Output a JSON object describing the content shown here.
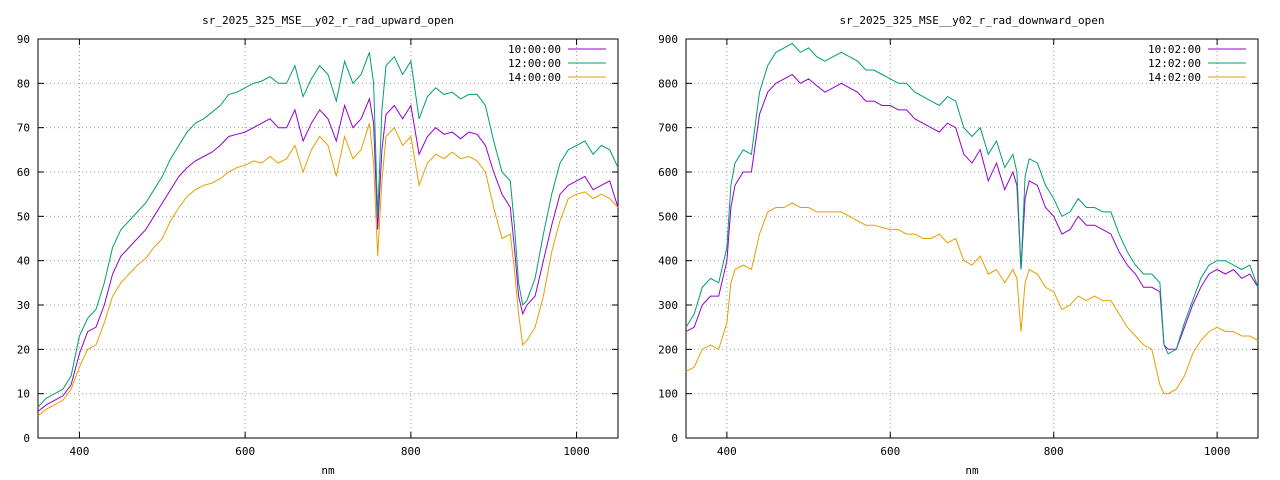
{
  "chart_data": [
    {
      "type": "line",
      "title": "sr_2025_325_MSE__y02_r_rad_upward_open",
      "xlabel": "nm",
      "ylabel": "",
      "xlim": [
        350,
        1050
      ],
      "ylim": [
        0,
        90
      ],
      "xticks": [
        400,
        600,
        800,
        1000
      ],
      "yticks": [
        0,
        10,
        20,
        30,
        40,
        50,
        60,
        70,
        80,
        90
      ],
      "grid": true,
      "legend_position": "top-right",
      "series": [
        {
          "name": "10:00:00",
          "color": "#9400d3",
          "x": [
            350,
            360,
            370,
            380,
            390,
            400,
            410,
            420,
            430,
            440,
            450,
            460,
            470,
            480,
            490,
            500,
            510,
            520,
            530,
            540,
            550,
            560,
            570,
            580,
            590,
            600,
            610,
            620,
            630,
            640,
            650,
            660,
            670,
            680,
            690,
            700,
            710,
            720,
            730,
            740,
            750,
            755,
            760,
            765,
            770,
            780,
            790,
            800,
            810,
            820,
            830,
            840,
            850,
            860,
            870,
            880,
            890,
            900,
            910,
            920,
            925,
            930,
            935,
            940,
            950,
            960,
            970,
            980,
            990,
            1000,
            1010,
            1020,
            1030,
            1040,
            1050
          ],
          "y": [
            6,
            7.5,
            8.5,
            9.5,
            12,
            19,
            24,
            25,
            30,
            37,
            41,
            43,
            45,
            47,
            50,
            53,
            56,
            59,
            61,
            62.5,
            63.5,
            64.5,
            66,
            68,
            68.5,
            69,
            70,
            71,
            72,
            70,
            70,
            74,
            67,
            71,
            74,
            72,
            67,
            75,
            70,
            72,
            76.5,
            71,
            47,
            65,
            73,
            75,
            72,
            75,
            64,
            68,
            70,
            68.5,
            69,
            67.5,
            69,
            68.5,
            66,
            60,
            55,
            52,
            43,
            32,
            28,
            30,
            32,
            40,
            48,
            55,
            57,
            58,
            59,
            56,
            57,
            58,
            52
          ]
        },
        {
          "name": "12:00:00",
          "color": "#009e73",
          "x": [
            350,
            360,
            370,
            380,
            390,
            400,
            410,
            420,
            430,
            440,
            450,
            460,
            470,
            480,
            490,
            500,
            510,
            520,
            530,
            540,
            550,
            560,
            570,
            580,
            590,
            600,
            610,
            620,
            630,
            640,
            650,
            660,
            670,
            680,
            690,
            700,
            710,
            720,
            730,
            740,
            750,
            755,
            760,
            765,
            770,
            780,
            790,
            800,
            810,
            820,
            830,
            840,
            850,
            860,
            870,
            880,
            890,
            900,
            910,
            920,
            925,
            930,
            935,
            940,
            950,
            960,
            970,
            980,
            990,
            1000,
            1010,
            1020,
            1030,
            1040,
            1050
          ],
          "y": [
            7,
            9,
            10,
            11,
            14,
            23,
            27,
            29,
            35,
            43,
            47,
            49,
            51,
            53,
            56,
            59,
            63,
            66,
            69,
            71,
            72,
            73.5,
            75,
            77.5,
            78,
            79,
            80,
            80.5,
            81.5,
            80,
            80,
            84,
            77,
            81,
            84,
            82,
            76,
            85,
            80,
            82,
            87,
            80,
            50,
            74,
            84,
            86,
            82,
            85,
            72,
            77,
            79,
            77.5,
            78,
            76.5,
            77.5,
            77.5,
            75,
            67,
            60,
            58,
            48,
            35,
            30,
            31,
            36,
            46,
            55,
            62,
            65,
            66,
            67,
            64,
            66,
            65,
            61
          ]
        },
        {
          "name": "14:00:00",
          "color": "#e69f00",
          "x": [
            350,
            360,
            370,
            380,
            390,
            400,
            410,
            420,
            430,
            440,
            450,
            460,
            470,
            480,
            490,
            500,
            510,
            520,
            530,
            540,
            550,
            560,
            570,
            580,
            590,
            600,
            610,
            620,
            630,
            640,
            650,
            660,
            670,
            680,
            690,
            700,
            710,
            720,
            730,
            740,
            750,
            755,
            760,
            765,
            770,
            780,
            790,
            800,
            810,
            820,
            830,
            840,
            850,
            860,
            870,
            880,
            890,
            900,
            910,
            920,
            925,
            930,
            935,
            940,
            950,
            960,
            970,
            980,
            990,
            1000,
            1010,
            1020,
            1030,
            1040,
            1050
          ],
          "y": [
            5,
            6.5,
            7.5,
            8.5,
            11,
            16,
            20,
            21,
            26,
            32,
            35,
            37,
            39,
            40.5,
            43,
            45,
            49,
            52,
            54.5,
            56,
            57,
            57.5,
            58.5,
            60,
            61,
            61.5,
            62.5,
            62,
            63.5,
            62,
            63,
            66,
            60,
            65,
            68,
            66,
            59,
            68,
            63,
            65,
            71,
            62,
            41,
            58,
            68,
            70,
            66,
            68,
            57,
            62,
            64,
            63,
            64.5,
            63,
            63.5,
            62.5,
            60,
            52,
            45,
            46,
            38,
            28,
            21,
            22,
            25,
            32,
            42,
            49,
            54,
            55,
            55.5,
            54,
            55,
            54,
            52
          ]
        }
      ]
    },
    {
      "type": "line",
      "title": "sr_2025_325_MSE__y02_r_rad_downward_open",
      "xlabel": "nm",
      "ylabel": "",
      "xlim": [
        350,
        1050
      ],
      "ylim": [
        0,
        900
      ],
      "xticks": [
        400,
        600,
        800,
        1000
      ],
      "yticks": [
        0,
        100,
        200,
        300,
        400,
        500,
        600,
        700,
        800,
        900
      ],
      "grid": true,
      "legend_position": "top-right",
      "series": [
        {
          "name": "10:02:00",
          "color": "#9400d3",
          "x": [
            350,
            360,
            370,
            380,
            390,
            400,
            405,
            410,
            420,
            430,
            440,
            450,
            460,
            470,
            480,
            490,
            500,
            510,
            520,
            530,
            540,
            550,
            560,
            570,
            580,
            590,
            600,
            610,
            620,
            630,
            640,
            650,
            660,
            670,
            680,
            690,
            700,
            710,
            720,
            730,
            740,
            750,
            755,
            760,
            765,
            770,
            780,
            790,
            800,
            810,
            820,
            830,
            840,
            850,
            860,
            870,
            880,
            890,
            900,
            910,
            920,
            930,
            935,
            940,
            950,
            960,
            970,
            980,
            990,
            1000,
            1010,
            1020,
            1030,
            1040,
            1050
          ],
          "y": [
            240,
            250,
            300,
            320,
            320,
            400,
            520,
            570,
            600,
            600,
            730,
            780,
            800,
            810,
            820,
            800,
            810,
            795,
            780,
            790,
            800,
            790,
            780,
            760,
            760,
            750,
            750,
            740,
            740,
            720,
            710,
            700,
            690,
            710,
            700,
            640,
            620,
            650,
            580,
            620,
            560,
            600,
            570,
            380,
            540,
            580,
            570,
            520,
            500,
            460,
            470,
            500,
            480,
            480,
            470,
            460,
            420,
            390,
            370,
            340,
            340,
            330,
            210,
            200,
            200,
            250,
            300,
            340,
            370,
            380,
            370,
            380,
            360,
            370,
            340
          ]
        },
        {
          "name": "12:02:00",
          "color": "#009e73",
          "x": [
            350,
            360,
            370,
            380,
            390,
            400,
            405,
            410,
            420,
            430,
            440,
            450,
            460,
            470,
            480,
            490,
            500,
            510,
            520,
            530,
            540,
            550,
            560,
            570,
            580,
            590,
            600,
            610,
            620,
            630,
            640,
            650,
            660,
            670,
            680,
            690,
            700,
            710,
            720,
            730,
            740,
            750,
            755,
            760,
            765,
            770,
            780,
            790,
            800,
            810,
            820,
            830,
            840,
            850,
            860,
            870,
            880,
            890,
            900,
            910,
            920,
            930,
            935,
            940,
            950,
            960,
            970,
            980,
            990,
            1000,
            1010,
            1020,
            1030,
            1040,
            1050
          ],
          "y": [
            250,
            280,
            340,
            360,
            350,
            430,
            570,
            620,
            650,
            640,
            780,
            840,
            870,
            880,
            890,
            870,
            880,
            860,
            850,
            860,
            870,
            860,
            850,
            830,
            830,
            820,
            810,
            800,
            800,
            780,
            770,
            760,
            750,
            770,
            760,
            700,
            680,
            700,
            640,
            670,
            610,
            640,
            600,
            380,
            590,
            630,
            620,
            570,
            540,
            500,
            510,
            540,
            520,
            520,
            510,
            510,
            460,
            420,
            390,
            370,
            370,
            350,
            210,
            190,
            200,
            260,
            310,
            360,
            390,
            400,
            400,
            390,
            380,
            390,
            340
          ]
        },
        {
          "name": "14:02:00",
          "color": "#e69f00",
          "x": [
            350,
            360,
            370,
            380,
            390,
            400,
            405,
            410,
            420,
            430,
            440,
            450,
            460,
            470,
            480,
            490,
            500,
            510,
            520,
            530,
            540,
            550,
            560,
            570,
            580,
            590,
            600,
            610,
            620,
            630,
            640,
            650,
            660,
            670,
            680,
            690,
            700,
            710,
            720,
            730,
            740,
            750,
            755,
            760,
            765,
            770,
            780,
            790,
            800,
            810,
            820,
            830,
            840,
            850,
            860,
            870,
            880,
            890,
            900,
            910,
            920,
            930,
            935,
            940,
            950,
            960,
            970,
            980,
            990,
            1000,
            1010,
            1020,
            1030,
            1040,
            1050
          ],
          "y": [
            150,
            160,
            200,
            210,
            200,
            260,
            350,
            380,
            390,
            380,
            460,
            510,
            520,
            520,
            530,
            520,
            520,
            510,
            510,
            510,
            510,
            500,
            490,
            480,
            480,
            475,
            470,
            470,
            460,
            460,
            450,
            450,
            460,
            440,
            450,
            400,
            390,
            410,
            370,
            380,
            350,
            380,
            360,
            240,
            350,
            380,
            370,
            340,
            330,
            290,
            300,
            320,
            310,
            320,
            310,
            310,
            280,
            250,
            230,
            210,
            200,
            120,
            100,
            100,
            110,
            140,
            190,
            220,
            240,
            250,
            240,
            240,
            230,
            230,
            220
          ]
        }
      ]
    }
  ]
}
